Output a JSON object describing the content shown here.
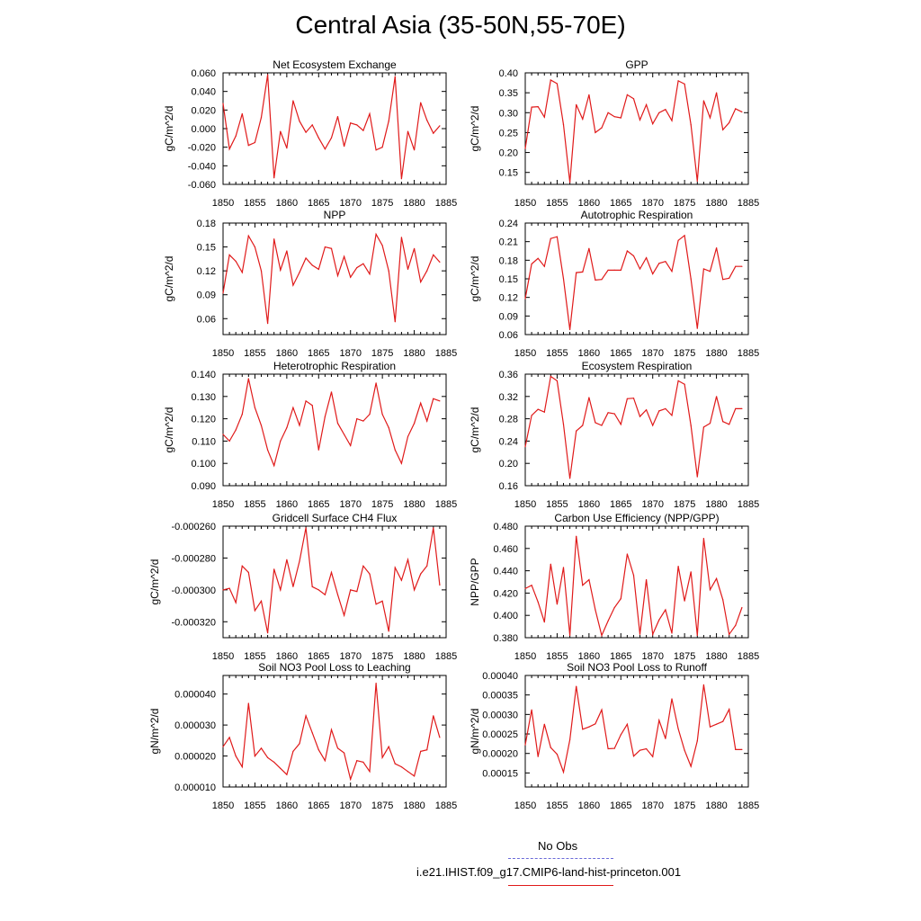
{
  "page_title": "Central Asia (35-50N,55-70E)",
  "legend": [
    {
      "label": "No Obs",
      "color": "#6a6ad8",
      "style": "dashed"
    },
    {
      "label": "i.e21.IHIST.f09_g17.CMIP6-land-hist-princeton.001",
      "color": "#e01a1a",
      "style": "solid"
    }
  ],
  "chart_data": [
    {
      "type": "line",
      "title": "Net Ecosystem Exchange",
      "ylabel": "gC/m^2/d",
      "xlabel": "",
      "xlim": [
        1850,
        1885
      ],
      "ylim": [
        -0.06,
        0.06
      ],
      "xticks": [
        "1850",
        "1855",
        "1860",
        "1865",
        "1870",
        "1875",
        "1880",
        "1885"
      ],
      "yticks": [
        "-0.060",
        "-0.040",
        "-0.020",
        "0.000",
        "0.020",
        "0.040",
        "0.060"
      ],
      "x_start": 1850,
      "series": [
        {
          "color": "#e01a1a",
          "values": [
            0.027,
            -0.022,
            -0.008,
            0.016,
            -0.018,
            -0.015,
            0.012,
            0.058,
            -0.053,
            -0.003,
            -0.021,
            0.03,
            0.008,
            -0.004,
            0.004,
            -0.01,
            -0.022,
            -0.01,
            0.013,
            -0.019,
            0.006,
            0.004,
            -0.002,
            0.016,
            -0.023,
            -0.02,
            0.008,
            0.056,
            -0.054,
            -0.003,
            -0.023,
            0.028,
            0.009,
            -0.005,
            0.003
          ]
        }
      ]
    },
    {
      "type": "line",
      "title": "GPP",
      "ylabel": "gC/m^2/d",
      "xlabel": "",
      "xlim": [
        1850,
        1885
      ],
      "ylim": [
        0.12,
        0.4
      ],
      "xticks": [
        "1850",
        "1855",
        "1860",
        "1865",
        "1870",
        "1875",
        "1880",
        "1885"
      ],
      "yticks": [
        "0.15",
        "0.20",
        "0.25",
        "0.30",
        "0.35",
        "0.40"
      ],
      "x_start": 1850,
      "series": [
        {
          "color": "#e01a1a",
          "values": [
            0.21,
            0.314,
            0.315,
            0.289,
            0.382,
            0.373,
            0.27,
            0.125,
            0.32,
            0.284,
            0.345,
            0.25,
            0.262,
            0.3,
            0.29,
            0.287,
            0.345,
            0.335,
            0.282,
            0.32,
            0.272,
            0.3,
            0.308,
            0.28,
            0.38,
            0.372,
            0.27,
            0.128,
            0.33,
            0.287,
            0.35,
            0.257,
            0.275,
            0.31,
            0.302
          ]
        }
      ]
    },
    {
      "type": "line",
      "title": "NPP",
      "ylabel": "gC/m^2/d",
      "xlabel": "",
      "xlim": [
        1850,
        1885
      ],
      "ylim": [
        0.04,
        0.18
      ],
      "xticks": [
        "1850",
        "1855",
        "1860",
        "1865",
        "1870",
        "1875",
        "1880",
        "1885"
      ],
      "yticks": [
        "0.06",
        "0.09",
        "0.12",
        "0.15",
        "0.18"
      ],
      "x_start": 1850,
      "series": [
        {
          "color": "#e01a1a",
          "values": [
            0.092,
            0.14,
            0.132,
            0.118,
            0.164,
            0.15,
            0.12,
            0.054,
            0.16,
            0.121,
            0.145,
            0.102,
            0.118,
            0.136,
            0.127,
            0.122,
            0.15,
            0.148,
            0.114,
            0.138,
            0.112,
            0.124,
            0.129,
            0.116,
            0.166,
            0.152,
            0.12,
            0.056,
            0.162,
            0.122,
            0.148,
            0.106,
            0.12,
            0.14,
            0.131
          ]
        }
      ]
    },
    {
      "type": "line",
      "title": "Autotrophic Respiration",
      "ylabel": "gC/m^2/d",
      "xlabel": "",
      "xlim": [
        1850,
        1885
      ],
      "ylim": [
        0.06,
        0.24
      ],
      "xticks": [
        "1850",
        "1855",
        "1860",
        "1865",
        "1870",
        "1875",
        "1880",
        "1885"
      ],
      "yticks": [
        "0.06",
        "0.09",
        "0.12",
        "0.15",
        "0.18",
        "0.21",
        "0.24"
      ],
      "x_start": 1850,
      "series": [
        {
          "color": "#e01a1a",
          "values": [
            0.118,
            0.174,
            0.183,
            0.17,
            0.215,
            0.218,
            0.15,
            0.068,
            0.16,
            0.161,
            0.199,
            0.148,
            0.149,
            0.164,
            0.164,
            0.164,
            0.195,
            0.187,
            0.166,
            0.184,
            0.158,
            0.175,
            0.178,
            0.162,
            0.212,
            0.22,
            0.15,
            0.07,
            0.166,
            0.162,
            0.2,
            0.149,
            0.151,
            0.17,
            0.17
          ]
        }
      ]
    },
    {
      "type": "line",
      "title": "Heterotrophic Respiration",
      "ylabel": "gC/m^2/d",
      "xlabel": "",
      "xlim": [
        1850,
        1885
      ],
      "ylim": [
        0.09,
        0.14
      ],
      "xticks": [
        "1850",
        "1855",
        "1860",
        "1865",
        "1870",
        "1875",
        "1880",
        "1885"
      ],
      "yticks": [
        "0.090",
        "0.100",
        "0.110",
        "0.120",
        "0.130",
        "0.140"
      ],
      "x_start": 1850,
      "series": [
        {
          "color": "#e01a1a",
          "values": [
            0.113,
            0.11,
            0.115,
            0.122,
            0.138,
            0.125,
            0.117,
            0.106,
            0.099,
            0.11,
            0.116,
            0.125,
            0.117,
            0.128,
            0.126,
            0.106,
            0.121,
            0.132,
            0.118,
            0.113,
            0.108,
            0.12,
            0.119,
            0.122,
            0.136,
            0.122,
            0.116,
            0.106,
            0.1,
            0.112,
            0.118,
            0.127,
            0.119,
            0.129,
            0.128
          ]
        }
      ]
    },
    {
      "type": "line",
      "title": "Ecosystem Respiration",
      "ylabel": "gC/m^2/d",
      "xlabel": "",
      "xlim": [
        1850,
        1885
      ],
      "ylim": [
        0.16,
        0.36
      ],
      "xticks": [
        "1850",
        "1855",
        "1860",
        "1865",
        "1870",
        "1875",
        "1880",
        "1885"
      ],
      "yticks": [
        "0.16",
        "0.20",
        "0.24",
        "0.28",
        "0.32",
        "0.36"
      ],
      "x_start": 1850,
      "series": [
        {
          "color": "#e01a1a",
          "values": [
            0.23,
            0.286,
            0.297,
            0.292,
            0.356,
            0.348,
            0.27,
            0.173,
            0.258,
            0.268,
            0.318,
            0.273,
            0.268,
            0.291,
            0.289,
            0.27,
            0.316,
            0.317,
            0.284,
            0.296,
            0.268,
            0.294,
            0.298,
            0.286,
            0.348,
            0.342,
            0.268,
            0.176,
            0.265,
            0.272,
            0.32,
            0.275,
            0.27,
            0.298,
            0.298
          ]
        }
      ]
    },
    {
      "type": "line",
      "title": "Gridcell Surface CH4 Flux",
      "ylabel": "gC/m^2/d",
      "xlabel": "",
      "xlim": [
        1850,
        1885
      ],
      "ylim": [
        -0.00033,
        -0.00026
      ],
      "xticks": [
        "1850",
        "1855",
        "1860",
        "1865",
        "1870",
        "1875",
        "1880",
        "1885"
      ],
      "yticks": [
        "-0.000260",
        "-0.000280",
        "-0.000300",
        "-0.000320"
      ],
      "x_start": 1850,
      "series": [
        {
          "color": "#e01a1a",
          "values": [
            -0.0003,
            -0.000299,
            -0.000308,
            -0.000285,
            -0.000289,
            -0.000313,
            -0.000307,
            -0.000327,
            -0.000287,
            -0.0003,
            -0.000281,
            -0.000298,
            -0.000282,
            -0.000261,
            -0.000298,
            -0.0003,
            -0.000303,
            -0.000289,
            -0.000303,
            -0.000316,
            -0.0003,
            -0.000301,
            -0.000285,
            -0.00029,
            -0.000309,
            -0.000307,
            -0.000326,
            -0.000286,
            -0.000294,
            -0.000281,
            -0.0003,
            -0.00029,
            -0.000285,
            -0.000261,
            -0.000297
          ]
        }
      ]
    },
    {
      "type": "line",
      "title": "Carbon Use Efficiency (NPP/GPP)",
      "ylabel": "NPP/GPP",
      "xlabel": "",
      "xlim": [
        1850,
        1885
      ],
      "ylim": [
        0.38,
        0.48
      ],
      "xticks": [
        "1850",
        "1855",
        "1860",
        "1865",
        "1870",
        "1875",
        "1880",
        "1885"
      ],
      "yticks": [
        "0.380",
        "0.400",
        "0.420",
        "0.440",
        "0.460",
        "0.480"
      ],
      "x_start": 1850,
      "series": [
        {
          "color": "#e01a1a",
          "values": [
            0.424,
            0.427,
            0.412,
            0.394,
            0.446,
            0.41,
            0.443,
            0.382,
            0.471,
            0.427,
            0.432,
            0.405,
            0.382,
            0.395,
            0.407,
            0.415,
            0.455,
            0.436,
            0.383,
            0.432,
            0.383,
            0.396,
            0.405,
            0.384,
            0.444,
            0.413,
            0.439,
            0.382,
            0.469,
            0.423,
            0.433,
            0.414,
            0.383,
            0.391,
            0.407
          ]
        }
      ]
    },
    {
      "type": "line",
      "title": "Soil NO3 Pool Loss to Leaching",
      "ylabel": "gN/m^2/d",
      "xlabel": "",
      "xlim": [
        1850,
        1885
      ],
      "ylim": [
        1e-05,
        4.6e-05
      ],
      "xticks": [
        "1850",
        "1855",
        "1860",
        "1865",
        "1870",
        "1875",
        "1880",
        "1885"
      ],
      "yticks": [
        "0.000010",
        "0.000020",
        "0.000030",
        "0.000040"
      ],
      "x_start": 1850,
      "series": [
        {
          "color": "#e01a1a",
          "values": [
            2.3e-05,
            2.6e-05,
            2e-05,
            1.65e-05,
            3.7e-05,
            2e-05,
            2.25e-05,
            1.95e-05,
            1.8e-05,
            1.6e-05,
            1.4e-05,
            2.15e-05,
            2.4e-05,
            3.3e-05,
            2.75e-05,
            2.2e-05,
            1.85e-05,
            2.85e-05,
            2.25e-05,
            2.1e-05,
            1.25e-05,
            1.85e-05,
            1.8e-05,
            1.5e-05,
            4.35e-05,
            1.95e-05,
            2.3e-05,
            1.75e-05,
            1.65e-05,
            1.5e-05,
            1.35e-05,
            2.15e-05,
            2.2e-05,
            3.3e-05,
            2.6e-05
          ]
        }
      ]
    },
    {
      "type": "line",
      "title": "Soil NO3 Pool Loss to Runoff",
      "ylabel": "gN/m^2/d",
      "xlabel": "",
      "xlim": [
        1850,
        1885
      ],
      "ylim": [
        0.000114,
        0.0004
      ],
      "xticks": [
        "1850",
        "1855",
        "1860",
        "1865",
        "1870",
        "1875",
        "1880",
        "1885"
      ],
      "yticks": [
        "0.00015",
        "0.00020",
        "0.00025",
        "0.00030",
        "0.00035",
        "0.00040"
      ],
      "x_start": 1850,
      "series": [
        {
          "color": "#e01a1a",
          "values": [
            0.000222,
            0.000312,
            0.000192,
            0.000275,
            0.000215,
            0.000198,
            0.000152,
            0.000235,
            0.000372,
            0.000262,
            0.000268,
            0.000276,
            0.000312,
            0.000212,
            0.000213,
            0.000248,
            0.000275,
            0.000193,
            0.000208,
            0.000212,
            0.000192,
            0.000285,
            0.000238,
            0.00034,
            0.000263,
            0.000208,
            0.000167,
            0.000232,
            0.000376,
            0.000268,
            0.000275,
            0.000282,
            0.000313,
            0.00021,
            0.00021
          ]
        }
      ]
    }
  ]
}
